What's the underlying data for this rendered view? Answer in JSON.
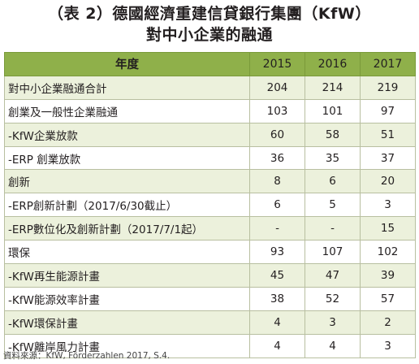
{
  "title": {
    "line1": "（表 2）德國經濟重建信貸銀行集團（KfW）",
    "line2": "對中小企業的融通"
  },
  "table": {
    "header": {
      "label": "年度",
      "years": [
        "2015",
        "2016",
        "2017"
      ]
    },
    "rows": [
      {
        "label": "對中小企業融通合計",
        "values": [
          "204",
          "214",
          "219"
        ]
      },
      {
        "label": "創業及一般性企業融通",
        "values": [
          "103",
          "101",
          "97"
        ]
      },
      {
        "label": "-KfW企業放款",
        "values": [
          "60",
          "58",
          "51"
        ]
      },
      {
        "label": "-ERP 創業放款",
        "values": [
          "36",
          "35",
          "37"
        ]
      },
      {
        "label": "創新",
        "values": [
          "8",
          "6",
          "20"
        ]
      },
      {
        "label": "-ERP創新計劃（2017/6/30截止）",
        "values": [
          "6",
          "5",
          "3"
        ]
      },
      {
        "label": "-ERP數位化及創新計劃（2017/7/1起）",
        "values": [
          "-",
          "-",
          "15"
        ]
      },
      {
        "label": "環保",
        "values": [
          "93",
          "107",
          "102"
        ]
      },
      {
        "label": "-KfW再生能源計畫",
        "values": [
          "45",
          "47",
          "39"
        ]
      },
      {
        "label": "-KfW能源效率計畫",
        "values": [
          "38",
          "52",
          "57"
        ]
      },
      {
        "label": "-KfW環保計畫",
        "values": [
          "4",
          "3",
          "2"
        ]
      },
      {
        "label": "-KfW離岸風力計畫",
        "values": [
          "4",
          "4",
          "3"
        ]
      }
    ]
  },
  "source": "資料來源：KfW, Förderzahlen 2017, S.4."
}
